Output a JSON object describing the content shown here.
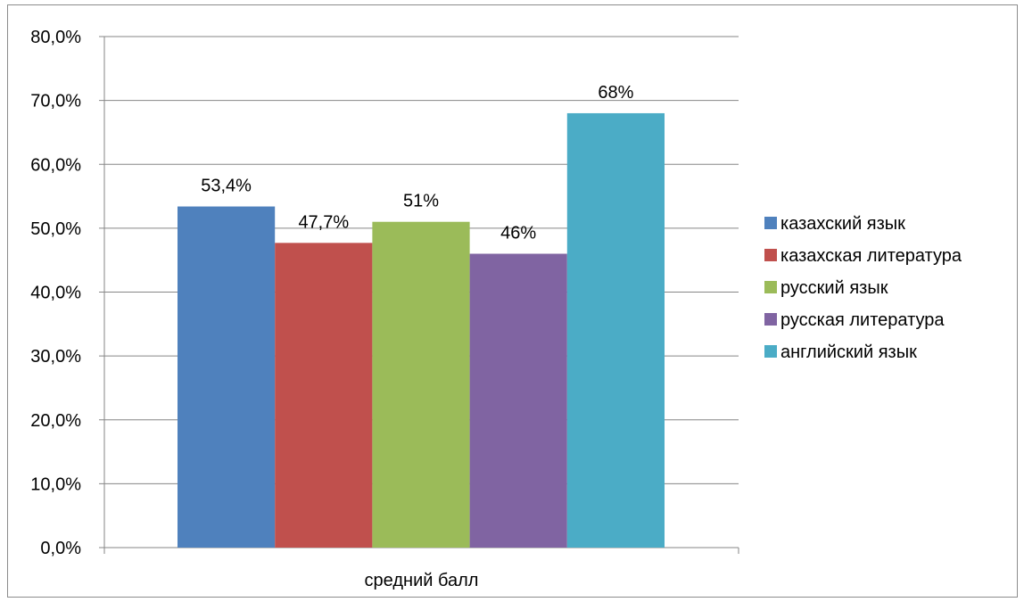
{
  "chart_data": {
    "type": "bar",
    "title": "",
    "xlabel": "",
    "ylabel": "",
    "categories": [
      "средний балл"
    ],
    "ylim": [
      0,
      80
    ],
    "yticks": [
      0,
      10,
      20,
      30,
      40,
      50,
      60,
      70,
      80
    ],
    "ytick_labels": [
      "0,0%",
      "10,0%",
      "20,0%",
      "30,0%",
      "40,0%",
      "50,0%",
      "60,0%",
      "70,0%",
      "80,0%"
    ],
    "grid": true,
    "legend_position": "right",
    "series": [
      {
        "name": "казахский язык",
        "values": [
          53.4
        ],
        "label": "53,4%",
        "color": "#4f81bd"
      },
      {
        "name": "казахская литература",
        "values": [
          47.7
        ],
        "label": "47,7%",
        "color": "#c0504d"
      },
      {
        "name": "русский язык",
        "values": [
          51
        ],
        "label": "51%",
        "color": "#9bbb59"
      },
      {
        "name": "русская литература",
        "values": [
          46
        ],
        "label": "46%",
        "color": "#8064a2"
      },
      {
        "name": "английский язык",
        "values": [
          68
        ],
        "label": "68%",
        "color": "#4bacc6"
      }
    ]
  }
}
